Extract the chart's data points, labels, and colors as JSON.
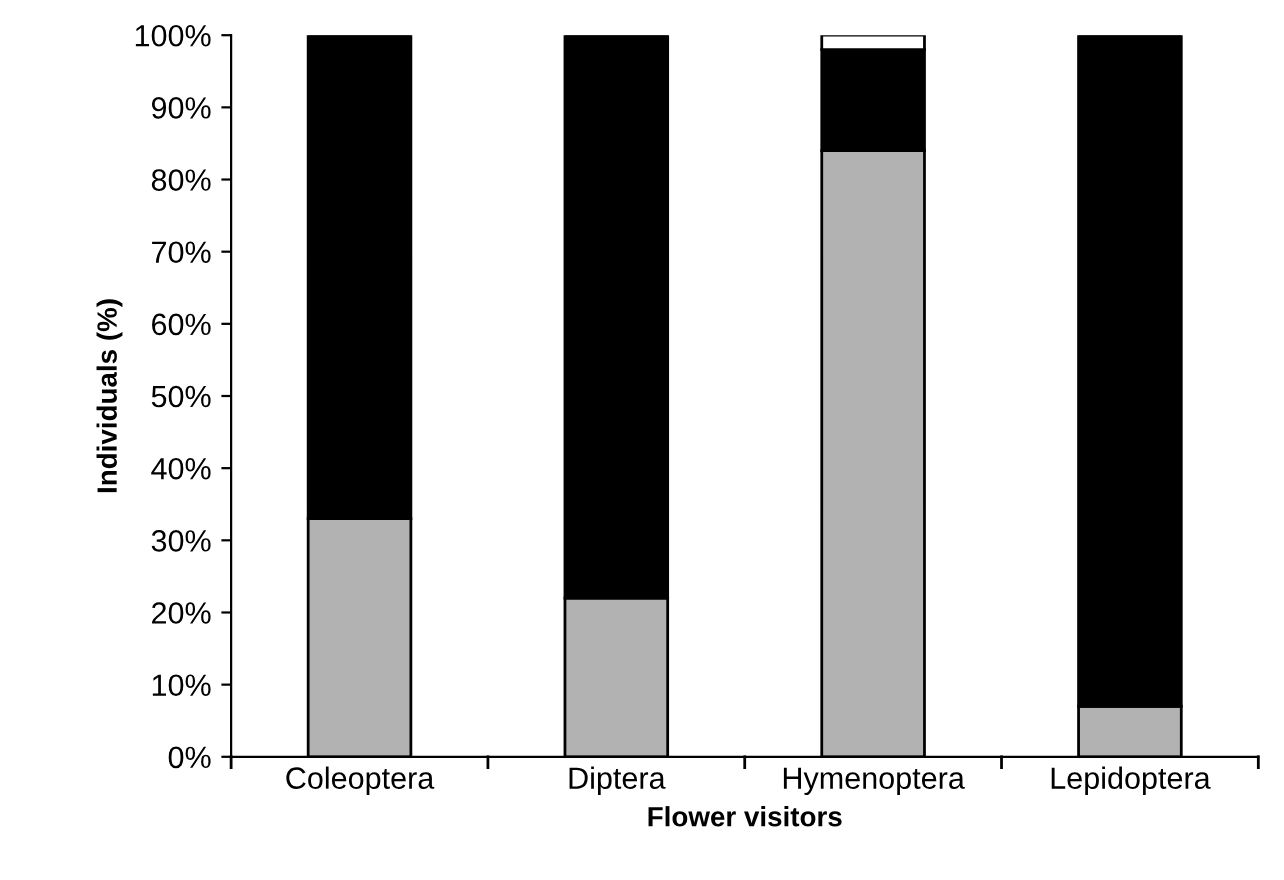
{
  "chart_data": {
    "type": "bar",
    "stacked": true,
    "xlabel": "Flower visitors",
    "ylabel": "Individuals (%)",
    "categories": [
      "Coleoptera",
      "Diptera",
      "Hymenoptera",
      "Lepidoptera"
    ],
    "series": [
      {
        "color": "#b2b2b2",
        "values": [
          33,
          22,
          84,
          7
        ]
      },
      {
        "color": "#000000",
        "values": [
          67,
          78,
          14,
          93
        ]
      },
      {
        "color": "#ffffff",
        "values": [
          null,
          null,
          2,
          null
        ]
      }
    ],
    "ylim": [
      0,
      100
    ],
    "yticks": [
      {
        "value": 0,
        "label": "0%"
      },
      {
        "value": 10,
        "label": "10%"
      },
      {
        "value": 20,
        "label": "20%"
      },
      {
        "value": 30,
        "label": "30%"
      },
      {
        "value": 40,
        "label": "40%"
      },
      {
        "value": 50,
        "label": "50%"
      },
      {
        "value": 60,
        "label": "60%"
      },
      {
        "value": 70,
        "label": "70%"
      },
      {
        "value": 80,
        "label": "80%"
      },
      {
        "value": 90,
        "label": "90%"
      },
      {
        "value": 100,
        "label": "100%"
      }
    ],
    "grid": false,
    "legend": false
  }
}
